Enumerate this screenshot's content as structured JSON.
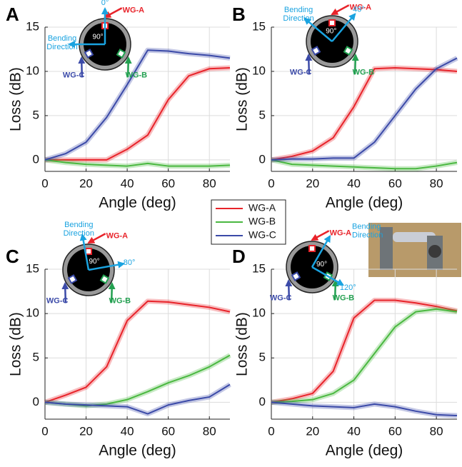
{
  "chart_data": [
    {
      "type": "line",
      "label": "A",
      "xlabel": "Angle (deg)",
      "ylabel": "Loss (dB)",
      "x": [
        0,
        10,
        20,
        30,
        40,
        50,
        60,
        70,
        80,
        90
      ],
      "series": [
        {
          "name": "WG-A",
          "color": "#e8232a",
          "values": [
            0,
            0,
            0,
            0,
            1.2,
            2.8,
            6.8,
            9.5,
            10.3,
            10.4
          ]
        },
        {
          "name": "WG-B",
          "color": "#4ab840",
          "values": [
            0,
            -0.3,
            -0.5,
            -0.6,
            -0.7,
            -0.4,
            -0.7,
            -0.7,
            -0.7,
            -0.6
          ]
        },
        {
          "name": "WG-C",
          "color": "#3b4aa8",
          "values": [
            0,
            0.7,
            2,
            4.8,
            8.5,
            12.4,
            12.3,
            12,
            11.8,
            11.5
          ]
        }
      ],
      "xlim": [
        0,
        90
      ],
      "xticks": [
        0,
        20,
        40,
        60,
        80
      ],
      "ylim": [
        -1.3,
        15
      ],
      "yticks": [
        0,
        5,
        10,
        15
      ],
      "grid": true,
      "annotations": {
        "angle": "0°",
        "bending": [
          "Bending",
          "Direction"
        ],
        "center": "90°"
      }
    },
    {
      "type": "line",
      "label": "B",
      "xlabel": "Angle (deg)",
      "ylabel": "Loss (dB)",
      "x": [
        0,
        10,
        20,
        30,
        40,
        50,
        60,
        70,
        80,
        90
      ],
      "series": [
        {
          "name": "WG-A",
          "color": "#e8232a",
          "values": [
            0,
            0.4,
            1,
            2.5,
            6,
            10.3,
            10.4,
            10.3,
            10.2,
            10
          ]
        },
        {
          "name": "WG-B",
          "color": "#4ab840",
          "values": [
            0,
            -0.5,
            -0.6,
            -0.7,
            -0.8,
            -0.9,
            -1,
            -1,
            -0.7,
            -0.3
          ]
        },
        {
          "name": "WG-C",
          "color": "#3b4aa8",
          "values": [
            0,
            0.1,
            0.1,
            0.2,
            0.2,
            2,
            5,
            8,
            10.3,
            11.5
          ]
        }
      ],
      "xlim": [
        0,
        90
      ],
      "xticks": [
        0,
        20,
        40,
        60,
        80
      ],
      "ylim": [
        -1.3,
        15
      ],
      "yticks": [
        0,
        5,
        10,
        15
      ],
      "grid": true,
      "annotations": {
        "angle": "40°",
        "bending": [
          "Bending",
          "Direction"
        ],
        "center": "90°"
      }
    },
    {
      "type": "line",
      "label": "C",
      "xlabel": "Angle (deg)",
      "ylabel": "Loss (dB)",
      "x": [
        0,
        10,
        20,
        30,
        40,
        50,
        60,
        70,
        80,
        90
      ],
      "series": [
        {
          "name": "WG-A",
          "color": "#e8232a",
          "values": [
            0,
            0.8,
            1.7,
            4,
            9.2,
            11.4,
            11.3,
            11,
            10.7,
            10.2
          ]
        },
        {
          "name": "WG-B",
          "color": "#4ab840",
          "values": [
            0,
            -0.2,
            -0.4,
            -0.2,
            0.3,
            1.2,
            2.2,
            3,
            4,
            5.3
          ]
        },
        {
          "name": "WG-C",
          "color": "#3b4aa8",
          "values": [
            0,
            -0.2,
            -0.3,
            -0.4,
            -0.5,
            -1.3,
            -0.3,
            0.2,
            0.6,
            2
          ]
        }
      ],
      "xlim": [
        0,
        90
      ],
      "xticks": [
        0,
        20,
        40,
        60,
        80
      ],
      "ylim": [
        -1.9,
        15
      ],
      "yticks": [
        0,
        5,
        10,
        15
      ],
      "grid": true,
      "annotations": {
        "angle": "80°",
        "bending": [
          "Bending",
          "Direction"
        ],
        "center": "90°"
      }
    },
    {
      "type": "line",
      "label": "D",
      "xlabel": "Angle (deg)",
      "ylabel": "Loss (dB)",
      "x": [
        0,
        10,
        20,
        30,
        40,
        50,
        60,
        70,
        80,
        90
      ],
      "series": [
        {
          "name": "WG-A",
          "color": "#e8232a",
          "values": [
            0,
            0.4,
            1,
            3.5,
            9.5,
            11.5,
            11.5,
            11.2,
            10.8,
            10.3
          ]
        },
        {
          "name": "WG-B",
          "color": "#4ab840",
          "values": [
            0,
            0.1,
            0.3,
            1,
            2.5,
            5.5,
            8.5,
            10.2,
            10.5,
            10.2
          ]
        },
        {
          "name": "WG-C",
          "color": "#3b4aa8",
          "values": [
            0,
            -0.2,
            -0.4,
            -0.5,
            -0.6,
            -0.2,
            -0.5,
            -1,
            -1.4,
            -1.5
          ]
        }
      ],
      "xlim": [
        0,
        90
      ],
      "xticks": [
        0,
        20,
        40,
        60,
        80
      ],
      "ylim": [
        -1.9,
        15
      ],
      "yticks": [
        0,
        5,
        10,
        15
      ],
      "grid": true,
      "annotations": {
        "angle": "120°",
        "bending": [
          "Bending",
          "Direction"
        ],
        "center": "90°"
      }
    }
  ]
}
